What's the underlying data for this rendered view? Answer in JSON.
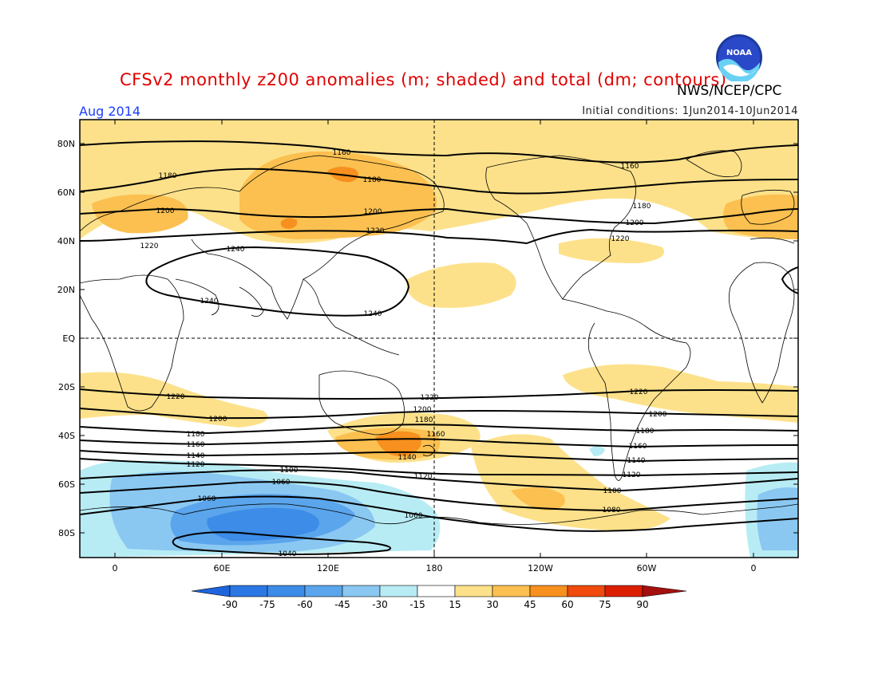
{
  "header": {
    "title": "CFSv2 monthly z200 anomalies (m; shaded) and total (dm; contours)",
    "agency": "NWS/NCEP/CPC",
    "valid_month": "Aug 2014",
    "initial_conditions": "Initial conditions: 1Jun2014-10Jun2014",
    "logo_text": "NOAA"
  },
  "axes": {
    "lat_labels": [
      "80N",
      "60N",
      "40N",
      "20N",
      "EQ",
      "20S",
      "40S",
      "60S",
      "80S"
    ],
    "lon_labels": [
      "0",
      "60E",
      "120E",
      "180",
      "120W",
      "60W",
      "0"
    ]
  },
  "colorbar": {
    "labels": [
      "-90",
      "-75",
      "-60",
      "-45",
      "-30",
      "-15",
      "15",
      "30",
      "45",
      "60",
      "75",
      "90"
    ],
    "colors": {
      "lt_-90": "#1e64dc",
      "-90_-75": "#2b78e4",
      "-75_-60": "#3c8ce8",
      "-60_-45": "#5aa5ec",
      "-45_-30": "#8ac8f2",
      "-30_-15": "#b8ecf4",
      "-15_15": "#ffffff",
      "15_30": "#fde18a",
      "30_45": "#fbc050",
      "45_60": "#f7901e",
      "60_75": "#f04a0c",
      "75_90": "#dc1e00",
      "gt_90": "#a50f0f"
    }
  },
  "contour_labels": [
    "1160",
    "1180",
    "1180",
    "1200",
    "1200",
    "1220",
    "1220",
    "1240",
    "1240",
    "1240",
    "1160",
    "1180",
    "1200",
    "1220",
    "1220",
    "1220",
    "1200",
    "1200",
    "1180",
    "1180",
    "1160",
    "1160",
    "1140",
    "1140",
    "1120",
    "1120",
    "1100",
    "1100",
    "1080",
    "1060",
    "1060",
    "1060",
    "1040",
    "1220",
    "1200",
    "1180",
    "1160",
    "1140",
    "1120"
  ]
}
